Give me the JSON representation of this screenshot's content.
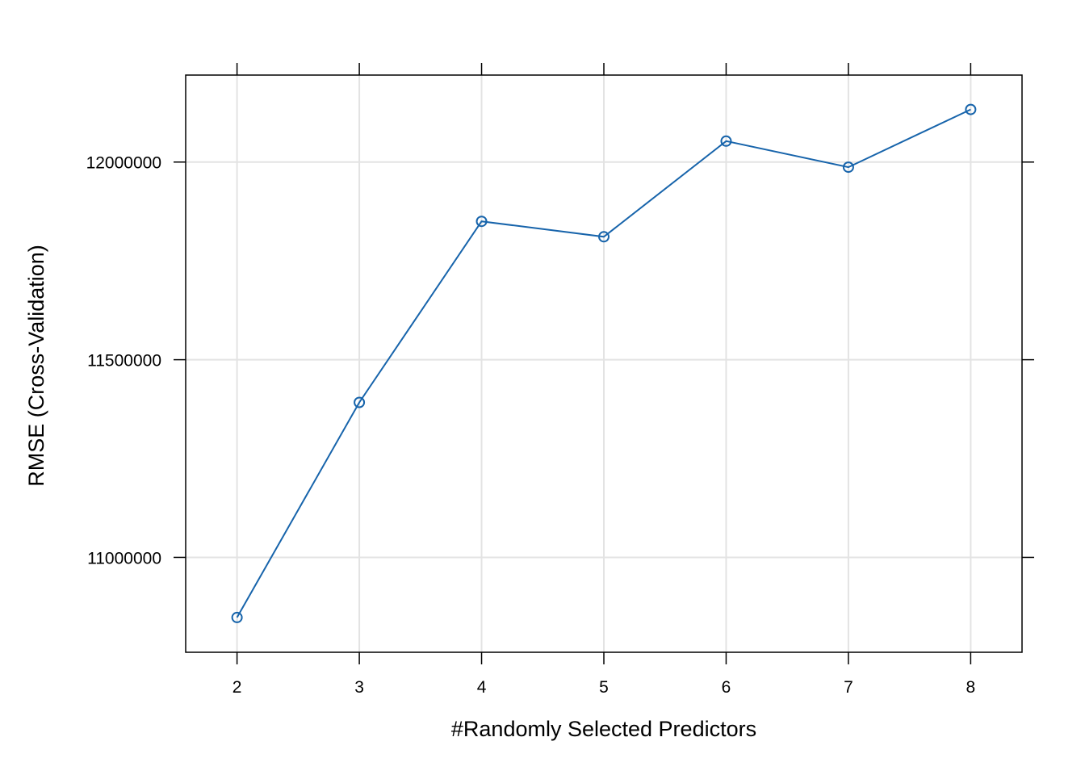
{
  "chart_data": {
    "type": "line",
    "xlabel": "#Randomly Selected Predictors",
    "ylabel": "RMSE (Cross-Validation)",
    "x": [
      2,
      3,
      4,
      5,
      6,
      7,
      8
    ],
    "y": [
      10848000,
      11392000,
      11850000,
      11811000,
      12053000,
      11987000,
      12133000
    ],
    "xlim": [
      1.58,
      8.42
    ],
    "ylim": [
      10760000,
      12220000
    ],
    "x_ticks": [
      "2",
      "3",
      "4",
      "5",
      "6",
      "7",
      "8"
    ],
    "y_ticks": [
      "11000000",
      "11500000",
      "12000000"
    ],
    "y_tick_values": [
      11000000,
      11500000,
      12000000
    ],
    "grid": true,
    "marker": "open-circle",
    "line_color": "#1764ab"
  }
}
